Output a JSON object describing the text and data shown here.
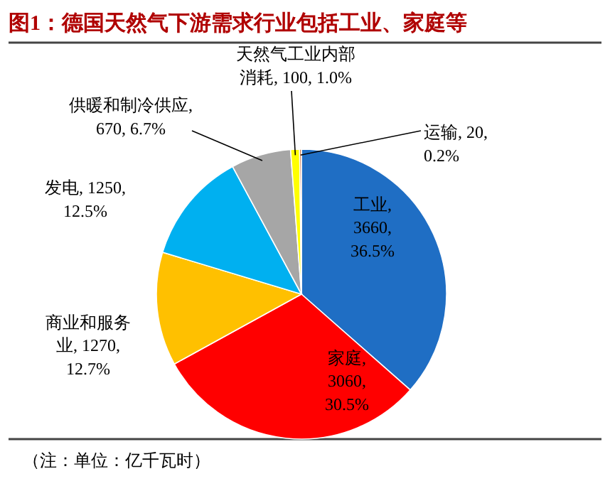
{
  "chart_data": {
    "type": "pie",
    "title": "图1：德国天然气下游需求行业包括工业、家庭等",
    "categories": [
      "工业",
      "家庭",
      "商业和服务业",
      "发电",
      "供暖和制冷供应",
      "天然气工业内部消耗",
      "运输"
    ],
    "values": [
      3660,
      3060,
      1270,
      1250,
      670,
      100,
      20
    ],
    "value_labels": [
      ", 3660, 36.5%",
      ", 3060, 30.5%",
      ", 1270, 12.7%",
      ", 1250, 12.5%",
      ", 670, 6.7%",
      ", 100, 1.0%",
      ", 20, 0.2%"
    ],
    "colors": [
      "#1f6ec4",
      "#ff0000",
      "#ffc000",
      "#00b0f0",
      "#a6a6a6",
      "#ffff00",
      "#c55a11"
    ],
    "annotations": [
      "（注：单位：亿千瓦时）"
    ]
  }
}
